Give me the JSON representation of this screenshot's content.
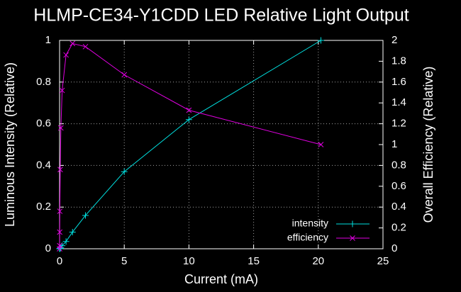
{
  "chart_data": {
    "type": "line",
    "title": "HLMP-CE34-Y1CDD LED Relative Light Output",
    "xlabel": "Current (mA)",
    "ylabel": "Luminous Intensity (Relative)",
    "y2label": "Overall Efficiency (Relative)",
    "xlim": [
      0,
      25
    ],
    "xticks": [
      0,
      5,
      10,
      15,
      20,
      25
    ],
    "ylim": [
      0,
      1
    ],
    "yticks": [
      0,
      0.2,
      0.4,
      0.6,
      0.8,
      1
    ],
    "y2lim": [
      0,
      2
    ],
    "y2ticks": [
      0,
      0.2,
      0.4,
      0.6,
      0.8,
      1,
      1.2,
      1.4,
      1.6,
      1.8,
      2
    ],
    "grid": true,
    "legend": "lower right",
    "series": [
      {
        "name": "intensity",
        "color": "#00e0e0",
        "marker": "+",
        "x": [
          0,
          0.01,
          0.02,
          0.05,
          0.1,
          0.2,
          0.5,
          1,
          2,
          5,
          10,
          20.2
        ],
        "values": [
          0,
          0,
          0.001,
          0.002,
          0.006,
          0.015,
          0.035,
          0.08,
          0.16,
          0.37,
          0.62,
          1.0
        ]
      },
      {
        "name": "efficiency",
        "color": "#e000e0",
        "marker": "x",
        "axis": "y2",
        "x": [
          0,
          0.005,
          0.01,
          0.02,
          0.05,
          0.1,
          0.2,
          0.5,
          1,
          2,
          5,
          10,
          20.2
        ],
        "values": [
          0,
          0.03,
          0.16,
          0.36,
          0.76,
          1.16,
          1.52,
          1.86,
          1.97,
          1.94,
          1.67,
          1.33,
          1.0
        ]
      }
    ]
  }
}
